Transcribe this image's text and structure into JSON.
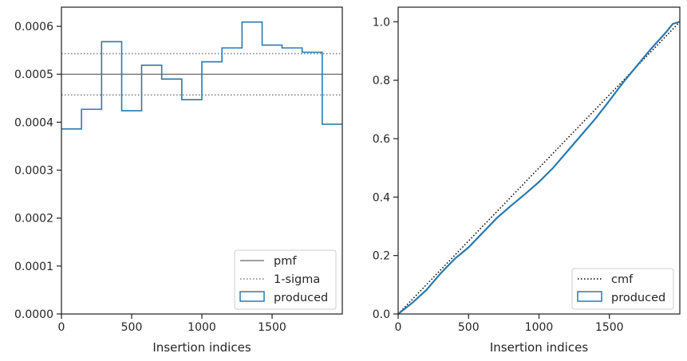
{
  "chart_data": [
    {
      "type": "step",
      "xlabel": "Insertion indices",
      "ylabel": "",
      "xlim": [
        0,
        2000
      ],
      "ylim": [
        0,
        0.00064
      ],
      "xticks": [
        0,
        500,
        1000,
        1500
      ],
      "xtick_labels": [
        "0",
        "500",
        "1000",
        "1500"
      ],
      "yticks": [
        0,
        0.0001,
        0.0002,
        0.0003,
        0.0004,
        0.0005,
        0.0006
      ],
      "ytick_labels": [
        "0.0000",
        "0.0001",
        "0.0002",
        "0.0003",
        "0.0004",
        "0.0005",
        "0.0006"
      ],
      "grid": false,
      "legend_position": "lower-right",
      "colors": {
        "produced": "#2a7ab0",
        "reference": "#7f7f7f"
      },
      "reference_lines": [
        {
          "name": "pmf",
          "y": 0.0005,
          "style": "solid"
        },
        {
          "name": "1-sigma",
          "y": 0.000543,
          "style": "dotted"
        },
        {
          "name": "1-sigma",
          "y": 0.000457,
          "style": "dotted"
        }
      ],
      "bins": {
        "name": "produced",
        "edges": [
          0,
          143,
          286,
          429,
          571,
          714,
          857,
          1000,
          1143,
          1286,
          1429,
          1571,
          1714,
          1857,
          2000
        ],
        "values": [
          0.000386,
          0.000427,
          0.000568,
          0.000424,
          0.000519,
          0.00049,
          0.000447,
          0.000526,
          0.000555,
          0.000609,
          0.000561,
          0.000555,
          0.000546,
          0.000396
        ]
      },
      "legend": [
        "pmf",
        "1-sigma",
        "produced"
      ]
    },
    {
      "type": "line",
      "xlabel": "Insertion indices",
      "ylabel": "",
      "xlim": [
        0,
        2000
      ],
      "ylim": [
        0,
        1.05
      ],
      "xticks": [
        0,
        500,
        1000,
        1500
      ],
      "xtick_labels": [
        "0",
        "500",
        "1000",
        "1500"
      ],
      "yticks": [
        0,
        0.2,
        0.4,
        0.6,
        0.8,
        1.0
      ],
      "ytick_labels": [
        "0.0",
        "0.2",
        "0.4",
        "0.6",
        "0.8",
        "1.0"
      ],
      "grid": false,
      "legend_position": "lower-right",
      "colors": {
        "produced": "#2a7ab0",
        "cmf": "#000000"
      },
      "series": [
        {
          "name": "cmf",
          "style": "dotted",
          "x": [
            0,
            2000
          ],
          "y": [
            0,
            1.0
          ]
        },
        {
          "name": "produced",
          "style": "solid",
          "x": [
            0,
            100,
            200,
            300,
            400,
            500,
            600,
            700,
            800,
            900,
            1000,
            1100,
            1200,
            1300,
            1400,
            1500,
            1600,
            1700,
            1800,
            1900,
            1950,
            2000
          ],
          "y": [
            0,
            0.038,
            0.082,
            0.138,
            0.188,
            0.228,
            0.278,
            0.328,
            0.37,
            0.41,
            0.452,
            0.5,
            0.556,
            0.612,
            0.668,
            0.73,
            0.794,
            0.852,
            0.91,
            0.963,
            0.993,
            1.0
          ]
        }
      ],
      "legend": [
        "cmf",
        "produced"
      ]
    }
  ]
}
